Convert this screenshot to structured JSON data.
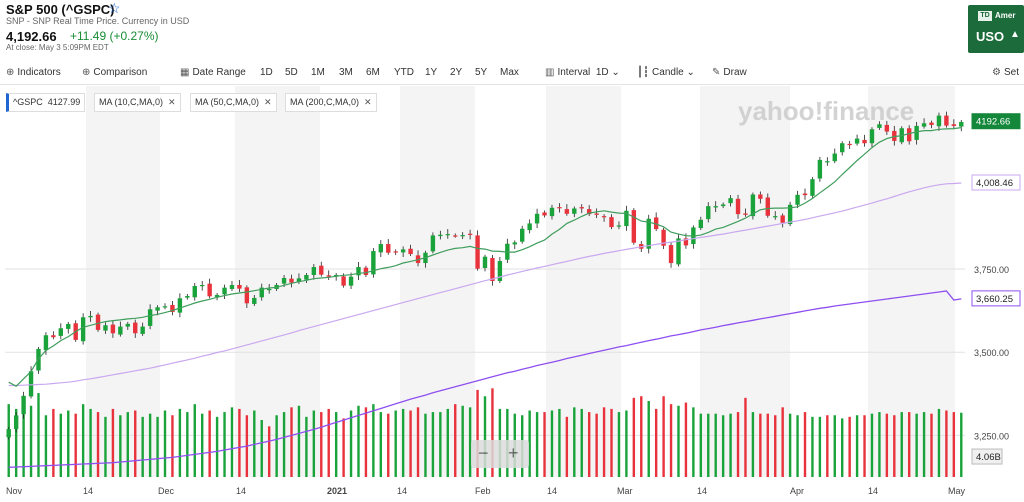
{
  "header": {
    "title": "S&P 500 (^GSPC)",
    "subtitle": "SNP - SNP Real Time Price. Currency in USD",
    "price": "4,192.66",
    "change": "+11.49 (+0.27%)",
    "close_note": "At close: May 3 5:09PM EDT"
  },
  "ad": {
    "logo": "TD",
    "brand": "Amer",
    "currency": "USO",
    "arrow": "▲"
  },
  "toolbar": {
    "indicators": "Indicators",
    "comparison": "Comparison",
    "date_range": "Date Range",
    "ranges": [
      "1D",
      "5D",
      "1M",
      "3M",
      "6M",
      "YTD",
      "1Y",
      "2Y",
      "5Y",
      "Max"
    ],
    "interval_label": "Interval",
    "interval_value": "1D",
    "chart_type": "Candle",
    "draw": "Draw",
    "settings": "Set"
  },
  "legend": {
    "symbol": "^GSPC",
    "symbol_value": "4127.99",
    "ma10": "MA (10,C,MA,0)",
    "ma50": "MA (50,C,MA,0)",
    "ma200": "MA (200,C,MA,0)",
    "close_x": "✕"
  },
  "watermark": "yahoo!finance",
  "zoom": {
    "minus": "−",
    "plus": "+"
  },
  "colors": {
    "up": "#1aa33a",
    "down": "#e8323c",
    "ma10": "#3f9e5c",
    "ma50": "#c9a8f0",
    "ma200": "#8e4ff0",
    "price_tag": "#14873a"
  },
  "chart_data": {
    "type": "candlestick",
    "y_range": [
      3125,
      4300
    ],
    "y_ticks": [
      3250,
      3500,
      3750
    ],
    "y_tick_labels": [
      "3,250.00",
      "3,500.00",
      "3,750.00"
    ],
    "x_tick_labels": [
      "Nov",
      "14",
      "Dec",
      "14",
      "2021",
      "14",
      "Feb",
      "14",
      "Mar",
      "14",
      "Apr",
      "14",
      "May"
    ],
    "price_tags": [
      {
        "label": "4192.66",
        "value": 4192.66,
        "kind": "last"
      },
      {
        "label": "4,008.46",
        "value": 4008.46,
        "kind": "ma50"
      },
      {
        "label": "3,660.25",
        "value": 3660.25,
        "kind": "ma200"
      },
      {
        "label": "4.06B",
        "value": 3185,
        "kind": "volume"
      }
    ],
    "closes": [
      3269,
      3310,
      3369,
      3443,
      3510,
      3551,
      3545,
      3572,
      3585,
      3537,
      3605,
      3609,
      3567,
      3581,
      3557,
      3577,
      3585,
      3557,
      3577,
      3629,
      3635,
      3638,
      3621,
      3662,
      3669,
      3699,
      3702,
      3668,
      3672,
      3694,
      3702,
      3691,
      3647,
      3663,
      3694,
      3690,
      3702,
      3723,
      3709,
      3722,
      3732,
      3756,
      3733,
      3727,
      3732,
      3700,
      3727,
      3756,
      3732,
      3804,
      3825,
      3799,
      3802,
      3809,
      3795,
      3768,
      3799,
      3851,
      3853,
      3855,
      3850,
      3852,
      3853,
      3751,
      3787,
      3714,
      3774,
      3826,
      3830,
      3871,
      3887,
      3916,
      3911,
      3934,
      3934,
      3916,
      3932,
      3932,
      3915,
      3913,
      3906,
      3876,
      3881,
      3925,
      3829,
      3811,
      3901,
      3870,
      3820,
      3768,
      3842,
      3821,
      3875,
      3898,
      3939,
      3939,
      3944,
      3963,
      3915,
      3913,
      3974,
      3961,
      3910,
      3909,
      3889,
      3943,
      3973,
      3972,
      4020,
      4078,
      4074,
      4097,
      4128,
      4125,
      4142,
      4128,
      4170,
      4185,
      4163,
      4135,
      4173,
      4134,
      4180,
      4188,
      4183,
      4211,
      4181,
      4180,
      4192
    ],
    "volume_billion": [
      4.6,
      4.3,
      4.1,
      4.5,
      5.3,
      3.9,
      4.3,
      4.0,
      4.2,
      4.0,
      4.6,
      4.3,
      4.1,
      3.8,
      4.3,
      3.9,
      4.1,
      4.2,
      3.8,
      4.0,
      3.8,
      4.2,
      3.9,
      4.3,
      4.1,
      4.6,
      4.0,
      4.2,
      3.8,
      4.1,
      4.4,
      4.3,
      3.9,
      4.2,
      3.6,
      3.2,
      3.9,
      4.1,
      4.4,
      4.5,
      3.8,
      4.2,
      4.1,
      4.3,
      4.1,
      3.7,
      4.2,
      4.5,
      4.4,
      4.6,
      4.1,
      4.0,
      4.2,
      4.3,
      4.2,
      4.4,
      4.0,
      4.1,
      4.1,
      4.3,
      4.6,
      4.5,
      4.4,
      5.5,
      5.1,
      5.6,
      4.3,
      4.3,
      4.0,
      3.9,
      4.2,
      4.1,
      4.1,
      4.2,
      4.3,
      3.8,
      4.4,
      4.3,
      4.1,
      4.0,
      4.4,
      4.3,
      4.1,
      4.2,
      5.0,
      5.1,
      4.8,
      4.3,
      5.1,
      4.6,
      4.5,
      4.7,
      4.4,
      4.0,
      4.0,
      4.0,
      3.9,
      4.0,
      4.1,
      5.0,
      4.1,
      4.0,
      4.0,
      3.9,
      4.4,
      4.0,
      3.9,
      4.1,
      3.8,
      3.8,
      3.9,
      3.9,
      3.7,
      3.8,
      3.9,
      3.9,
      4.0,
      4.1,
      4.0,
      3.9,
      4.1,
      4.1,
      4.0,
      4.1,
      4.0,
      4.3,
      4.2,
      4.1,
      4.06
    ],
    "ma10": [
      3410,
      3398,
      3420,
      3442,
      3480,
      3505,
      3519,
      3535,
      3547,
      3562,
      3575,
      3581,
      3587,
      3592,
      3595,
      3597,
      3600,
      3602,
      3605,
      3610,
      3614,
      3619,
      3625,
      3633,
      3640,
      3648,
      3654,
      3659,
      3665,
      3670,
      3675,
      3678,
      3681,
      3685,
      3689,
      3693,
      3695,
      3701,
      3707,
      3712,
      3716,
      3721,
      3723,
      3725,
      3728,
      3731,
      3733,
      3737,
      3739,
      3745,
      3751,
      3755,
      3760,
      3768,
      3773,
      3778,
      3784,
      3792,
      3800,
      3807,
      3812,
      3814,
      3818,
      3812,
      3810,
      3804,
      3803,
      3801,
      3801,
      3808,
      3817,
      3828,
      3837,
      3855,
      3869,
      3887,
      3897,
      3908,
      3918,
      3922,
      3925,
      3921,
      3918,
      3917,
      3906,
      3894,
      3891,
      3885,
      3877,
      3861,
      3855,
      3850,
      3849,
      3852,
      3860,
      3870,
      3875,
      3884,
      3893,
      3903,
      3916,
      3928,
      3932,
      3933,
      3933,
      3934,
      3937,
      3948,
      3962,
      3979,
      3995,
      4012,
      4034,
      4055,
      4076,
      4095,
      4115,
      4131,
      4142,
      4148,
      4151,
      4157,
      4162,
      4166,
      4166,
      4170,
      4171,
      4172,
      4175
    ],
    "ma50": [
      3400,
      3400,
      3401,
      3402,
      3403,
      3404,
      3406,
      3408,
      3410,
      3413,
      3417,
      3420,
      3424,
      3428,
      3432,
      3436,
      3440,
      3444,
      3448,
      3452,
      3457,
      3462,
      3467,
      3472,
      3477,
      3482,
      3488,
      3493,
      3499,
      3504,
      3510,
      3516,
      3522,
      3528,
      3534,
      3540,
      3546,
      3552,
      3558,
      3565,
      3571,
      3577,
      3583,
      3589,
      3595,
      3601,
      3607,
      3613,
      3619,
      3625,
      3631,
      3637,
      3643,
      3649,
      3655,
      3661,
      3667,
      3673,
      3679,
      3685,
      3691,
      3697,
      3703,
      3709,
      3715,
      3720,
      3726,
      3732,
      3737,
      3743,
      3748,
      3753,
      3758,
      3763,
      3768,
      3773,
      3778,
      3783,
      3788,
      3792,
      3797,
      3801,
      3805,
      3809,
      3813,
      3817,
      3820,
      3824,
      3828,
      3831,
      3834,
      3838,
      3841,
      3845,
      3848,
      3852,
      3855,
      3859,
      3863,
      3867,
      3871,
      3875,
      3879,
      3883,
      3887,
      3891,
      3895,
      3899,
      3904,
      3909,
      3914,
      3919,
      3924,
      3930,
      3936,
      3942,
      3948,
      3955,
      3961,
      3968,
      3975,
      3982,
      3988,
      3994,
      3999,
      4003,
      4006,
      4007,
      4008.46
    ],
    "ma200": [
      3154,
      3155,
      3156,
      3157,
      3158,
      3159,
      3160,
      3161,
      3162,
      3163,
      3164,
      3165,
      3166,
      3167,
      3168,
      3170,
      3172,
      3174,
      3176,
      3178,
      3180,
      3182,
      3184,
      3187,
      3190,
      3193,
      3196,
      3199,
      3202,
      3206,
      3210,
      3214,
      3218,
      3223,
      3228,
      3233,
      3238,
      3244,
      3250,
      3256,
      3262,
      3268,
      3275,
      3282,
      3289,
      3296,
      3303,
      3310,
      3317,
      3324,
      3331,
      3338,
      3345,
      3352,
      3359,
      3365,
      3371,
      3378,
      3384,
      3390,
      3396,
      3402,
      3408,
      3414,
      3420,
      3426,
      3432,
      3438,
      3443,
      3449,
      3454,
      3460,
      3465,
      3470,
      3475,
      3481,
      3486,
      3491,
      3496,
      3501,
      3506,
      3511,
      3516,
      3520,
      3525,
      3530,
      3535,
      3539,
      3544,
      3549,
      3553,
      3557,
      3562,
      3567,
      3571,
      3575,
      3580,
      3584,
      3588,
      3592,
      3596,
      3600,
      3604,
      3608,
      3612,
      3616,
      3620,
      3624,
      3628,
      3632,
      3635,
      3639,
      3642,
      3645,
      3648,
      3651,
      3654,
      3657,
      3660,
      3663,
      3666,
      3669,
      3672,
      3675,
      3678,
      3681,
      3684,
      3657,
      3660.25
    ]
  }
}
